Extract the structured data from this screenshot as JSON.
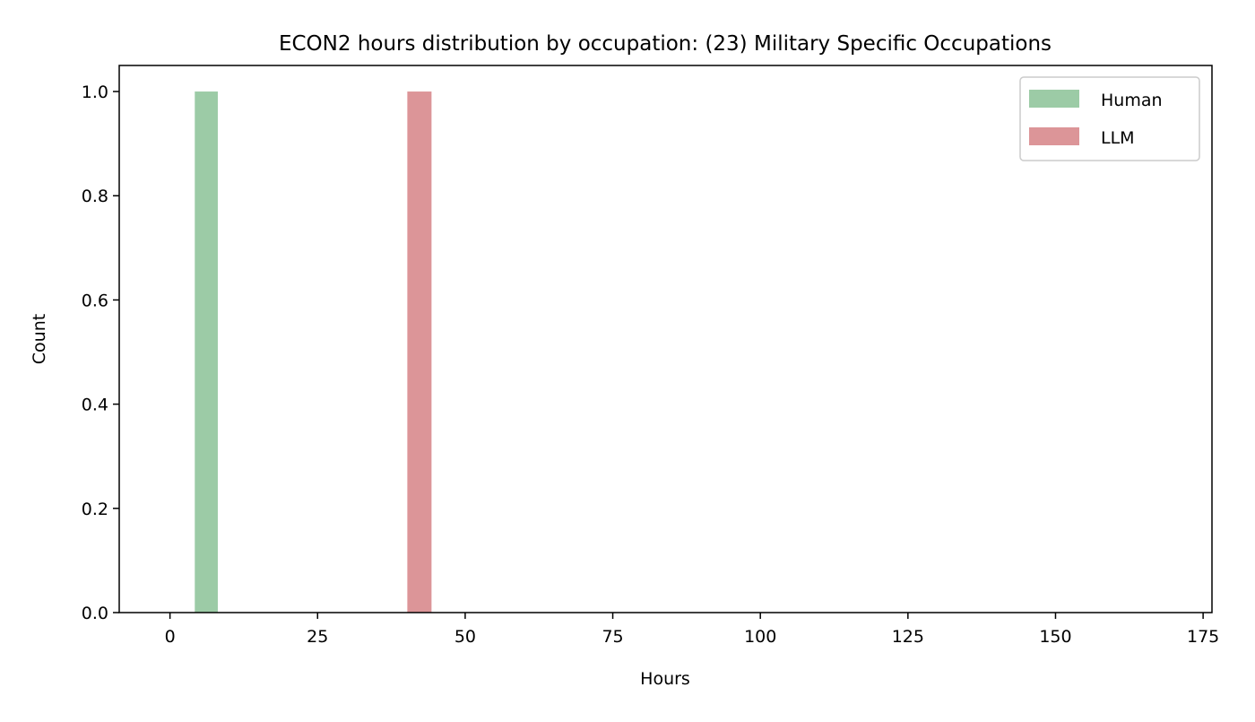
{
  "chart_data": {
    "type": "bar",
    "title": "ECON2 hours distribution by occupation: (23) Military Specific Occupations",
    "xlabel": "Hours",
    "ylabel": "Count",
    "xlim": [
      -8.6,
      176.5
    ],
    "ylim": [
      0,
      1.05
    ],
    "xticks": [
      0,
      25,
      50,
      75,
      100,
      125,
      150,
      175
    ],
    "yticks": [
      0.0,
      0.2,
      0.4,
      0.6,
      0.8,
      1.0
    ],
    "xtick_labels": [
      "0",
      "25",
      "50",
      "75",
      "100",
      "125",
      "150",
      "175"
    ],
    "ytick_labels": [
      "0.0",
      "0.2",
      "0.4",
      "0.6",
      "0.8",
      "1.0"
    ],
    "grid": false,
    "legend_position": "top-right",
    "series": [
      {
        "name": "Human",
        "color": "#9ccba6",
        "bins": [
          {
            "x_start": 4.2,
            "x_end": 8.1,
            "count": 1
          }
        ]
      },
      {
        "name": "LLM",
        "color": "#dc9598",
        "bins": [
          {
            "x_start": 40.2,
            "x_end": 44.3,
            "count": 1
          }
        ]
      }
    ]
  }
}
